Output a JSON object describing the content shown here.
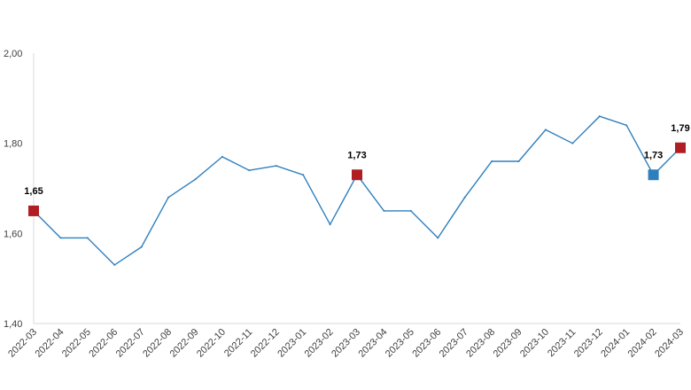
{
  "chart_data": {
    "type": "line",
    "title": "",
    "xlabel": "",
    "ylabel": "",
    "ylim": [
      1.4,
      2.0
    ],
    "yticks": [
      "1,40",
      "1,60",
      "1,80",
      "2,00"
    ],
    "ytick_values": [
      1.4,
      1.6,
      1.8,
      2.0
    ],
    "grid": false,
    "legend": "none",
    "categories": [
      "2022-03",
      "2022-04",
      "2022-05",
      "2022-06",
      "2022-07",
      "2022-08",
      "2022-09",
      "2022-10",
      "2022-11",
      "2022-12",
      "2023-01",
      "2023-02",
      "2023-03",
      "2023-04",
      "2023-05",
      "2023-06",
      "2023-07",
      "2023-08",
      "2023-09",
      "2023-10",
      "2023-11",
      "2023-12",
      "2024-01",
      "2024-02",
      "2024-03"
    ],
    "series": [
      {
        "values": [
          1.65,
          1.59,
          1.59,
          1.53,
          1.57,
          1.68,
          1.72,
          1.77,
          1.74,
          1.75,
          1.73,
          1.62,
          1.73,
          1.65,
          1.65,
          1.59,
          1.68,
          1.76,
          1.76,
          1.83,
          1.8,
          1.86,
          1.84,
          1.73,
          1.79
        ],
        "color": "#2e7fbe"
      }
    ],
    "markers": [
      {
        "index": 0,
        "label": "1,65",
        "color": "#b01e23"
      },
      {
        "index": 12,
        "label": "1,73",
        "color": "#b01e23"
      },
      {
        "index": 23,
        "label": "1,73",
        "color": "#2e7fbe"
      },
      {
        "index": 24,
        "label": "1,79",
        "color": "#b01e23"
      }
    ],
    "axis_color": "#d9d9d9",
    "text_color": "#404040"
  }
}
